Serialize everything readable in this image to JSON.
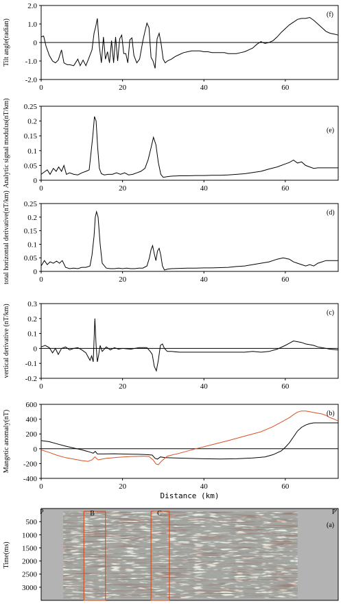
{
  "charts": [
    {
      "panel_label": "(f)",
      "type": "line",
      "ylabel": "Tilt angle(radian)",
      "xlabel": "",
      "xlim": [
        0,
        73
      ],
      "ylim": [
        -2.0,
        2.0
      ],
      "xticks": [
        0,
        20,
        40,
        60
      ],
      "yticks": [
        -2.0,
        -1.0,
        0,
        1.0,
        2.0
      ],
      "ytick_labels": [
        "-2.0",
        "-1.0",
        "0",
        "1.0",
        "2.0"
      ],
      "reference_line": 0,
      "series": [
        {
          "color": "#000000",
          "x": [
            0,
            0.6,
            1.2,
            2,
            2.8,
            3.5,
            4.2,
            5,
            5.6,
            6.4,
            7,
            8,
            9,
            9.6,
            10.3,
            11,
            11.8,
            12.5,
            13,
            13.4,
            13.8,
            14.3,
            14.8,
            15.3,
            15.8,
            16.3,
            16.8,
            17.3,
            17.8,
            18.3,
            18.8,
            19.3,
            19.8,
            20.3,
            20.8,
            21.3,
            21.8,
            22.3,
            22.8,
            23.5,
            24.2,
            25,
            25.5,
            26,
            26.5,
            27,
            27.5,
            28,
            28.5,
            29,
            29.5,
            30,
            30.5,
            31,
            31.5,
            32,
            33,
            34,
            35,
            36,
            37,
            38,
            39,
            40,
            41,
            42,
            43,
            44,
            45,
            46,
            47,
            48,
            49,
            50,
            51,
            52,
            53,
            54,
            55,
            56,
            57,
            58,
            59,
            60,
            61,
            62,
            63,
            64,
            65,
            66,
            67,
            68,
            69,
            70,
            71,
            72,
            73
          ],
          "y": [
            0.3,
            0.35,
            -0.2,
            -0.7,
            -1.0,
            -1.1,
            -0.95,
            -0.4,
            -1.1,
            -1.2,
            -1.2,
            -1.25,
            -0.9,
            -1.25,
            -0.95,
            -1.25,
            -0.8,
            -0.4,
            0.5,
            0.85,
            1.3,
            -0.2,
            -1.1,
            0.3,
            -0.9,
            -0.5,
            -1.1,
            0.1,
            -1.1,
            0.3,
            -1.0,
            0.2,
            0.4,
            -0.6,
            -0.6,
            -1.1,
            0.15,
            0.25,
            -0.7,
            -1.1,
            -0.9,
            0.1,
            0.6,
            1.05,
            0.8,
            -0.8,
            -1.0,
            -1.4,
            0.2,
            0.5,
            -0.1,
            -0.9,
            -1.1,
            -1.0,
            -0.95,
            -0.9,
            -0.75,
            -0.65,
            -0.55,
            -0.5,
            -0.45,
            -0.45,
            -0.45,
            -0.5,
            -0.5,
            -0.55,
            -0.55,
            -0.55,
            -0.55,
            -0.6,
            -0.6,
            -0.6,
            -0.55,
            -0.5,
            -0.4,
            -0.3,
            -0.1,
            0.05,
            -0.05,
            0.0,
            0.1,
            0.3,
            0.55,
            0.75,
            0.95,
            1.1,
            1.25,
            1.3,
            1.3,
            1.35,
            1.2,
            1.0,
            0.8,
            0.6,
            0.5,
            0.45,
            0.4
          ]
        }
      ]
    },
    {
      "panel_label": "(e)",
      "type": "line",
      "ylabel": "Analytic signal modulus(nT/km)",
      "xlabel": "",
      "xlim": [
        0,
        73
      ],
      "ylim": [
        0,
        0.25
      ],
      "xticks": [
        0,
        20,
        40,
        60
      ],
      "yticks": [
        0,
        0.05,
        0.1,
        0.15,
        0.2,
        0.25
      ],
      "ytick_labels": [
        "0",
        "0.05",
        "0.1",
        "0.15",
        "0.2",
        "0.25"
      ],
      "series": [
        {
          "color": "#000000",
          "x": [
            0,
            0.8,
            1.5,
            2.2,
            3,
            3.7,
            4.3,
            5,
            5.6,
            6.2,
            7,
            8,
            9,
            10,
            11,
            11.8,
            12.3,
            12.7,
            13.1,
            13.5,
            13.9,
            14.3,
            14.8,
            15.5,
            16.5,
            17.5,
            18.5,
            19.5,
            20.5,
            21.5,
            22.5,
            23.5,
            24.5,
            25.5,
            26.3,
            27,
            27.6,
            28.2,
            28.8,
            29.4,
            30,
            31,
            32,
            34,
            36,
            38,
            40,
            42,
            44,
            46,
            48,
            50,
            52,
            54,
            56,
            58,
            60,
            61,
            62,
            63,
            64,
            65,
            66,
            67,
            68,
            70,
            73
          ],
          "y": [
            0.02,
            0.028,
            0.035,
            0.02,
            0.04,
            0.03,
            0.045,
            0.03,
            0.05,
            0.02,
            0.025,
            0.02,
            0.018,
            0.025,
            0.03,
            0.035,
            0.1,
            0.15,
            0.215,
            0.2,
            0.11,
            0.04,
            0.022,
            0.018,
            0.02,
            0.02,
            0.025,
            0.02,
            0.025,
            0.018,
            0.02,
            0.025,
            0.03,
            0.04,
            0.07,
            0.11,
            0.145,
            0.12,
            0.06,
            0.02,
            0.01,
            0.012,
            0.014,
            0.015,
            0.015,
            0.016,
            0.016,
            0.017,
            0.017,
            0.018,
            0.02,
            0.022,
            0.026,
            0.03,
            0.038,
            0.045,
            0.055,
            0.06,
            0.068,
            0.058,
            0.062,
            0.05,
            0.045,
            0.04,
            0.042,
            0.042,
            0.042
          ]
        }
      ]
    },
    {
      "panel_label": "(d)",
      "type": "line",
      "ylabel": "total horizontal derivative(nT/km)",
      "xlabel": "",
      "xlim": [
        0,
        73
      ],
      "ylim": [
        0,
        0.25
      ],
      "xticks": [
        0,
        20,
        40,
        60
      ],
      "yticks": [
        0,
        0.05,
        0.1,
        0.15,
        0.2,
        0.25
      ],
      "ytick_labels": [
        "0",
        "0.05",
        "0.1",
        "0.15",
        "0.2",
        "0.25"
      ],
      "series": [
        {
          "color": "#000000",
          "x": [
            0,
            0.8,
            1.5,
            2.2,
            3,
            3.8,
            4.5,
            5.2,
            6,
            7,
            8,
            9,
            10,
            11,
            12,
            12.5,
            13,
            13.3,
            13.6,
            14,
            14.5,
            15,
            16,
            17,
            18,
            19,
            20,
            21,
            22,
            23,
            24,
            25,
            26,
            26.6,
            27,
            27.4,
            27.8,
            28.2,
            28.6,
            29,
            29.4,
            29.8,
            30.3,
            31,
            32,
            34,
            36,
            38,
            40,
            42,
            44,
            46,
            48,
            50,
            52,
            54,
            56,
            58,
            59.5,
            61,
            62,
            63,
            64,
            65,
            66,
            67,
            68,
            70,
            73
          ],
          "y": [
            0.02,
            0.04,
            0.025,
            0.035,
            0.03,
            0.038,
            0.03,
            0.04,
            0.015,
            0.01,
            0.012,
            0.01,
            0.015,
            0.015,
            0.02,
            0.06,
            0.13,
            0.2,
            0.22,
            0.2,
            0.1,
            0.03,
            0.012,
            0.01,
            0.01,
            0.012,
            0.01,
            0.012,
            0.01,
            0.01,
            0.012,
            0.012,
            0.02,
            0.05,
            0.08,
            0.095,
            0.065,
            0.04,
            0.075,
            0.085,
            0.06,
            0.02,
            0.005,
            0.008,
            0.01,
            0.011,
            0.012,
            0.012,
            0.013,
            0.013,
            0.014,
            0.015,
            0.018,
            0.02,
            0.025,
            0.03,
            0.035,
            0.045,
            0.05,
            0.045,
            0.035,
            0.03,
            0.025,
            0.02,
            0.025,
            0.02,
            0.03,
            0.04,
            0.04
          ]
        }
      ]
    },
    {
      "panel_label": "(c)",
      "type": "line",
      "ylabel": "vertical derivative (nT/km)",
      "xlabel": "",
      "xlim": [
        0,
        73
      ],
      "ylim": [
        -0.2,
        0.3
      ],
      "xticks": [
        0,
        20,
        40,
        60
      ],
      "yticks": [
        -0.2,
        -0.1,
        0,
        0.1,
        0.2,
        0.3
      ],
      "ytick_labels": [
        "-0.2",
        "-0.1",
        "0",
        "0.1",
        "0.2",
        "0.3"
      ],
      "reference_line": 0,
      "series": [
        {
          "color": "#000000",
          "x": [
            0,
            1,
            2,
            2.8,
            3.5,
            4.2,
            5,
            6,
            7,
            8,
            9,
            10,
            11,
            12,
            12.4,
            12.8,
            13.2,
            13.5,
            13.8,
            14.1,
            14.5,
            15,
            16,
            17,
            18,
            19,
            20,
            22,
            24,
            26,
            26.8,
            27.3,
            27.8,
            28.3,
            28.8,
            29.3,
            29.8,
            30.3,
            31,
            32,
            34,
            36,
            38,
            40,
            42,
            44,
            46,
            48,
            50,
            52,
            54,
            56,
            58,
            60,
            61,
            62,
            63,
            64,
            65,
            66,
            67,
            68,
            69,
            70,
            71,
            73
          ],
          "y": [
            0.01,
            0.02,
            0.005,
            -0.03,
            0.0,
            -0.04,
            0.0,
            0.01,
            -0.01,
            0.0,
            0.005,
            -0.01,
            -0.03,
            -0.08,
            -0.05,
            -0.09,
            0.2,
            0.02,
            -0.09,
            -0.05,
            0.02,
            -0.02,
            0.01,
            -0.01,
            0.005,
            -0.005,
            0.0,
            -0.005,
            0.005,
            0.005,
            -0.02,
            -0.04,
            -0.12,
            -0.15,
            -0.08,
            0.02,
            0.03,
            0.0,
            -0.02,
            -0.02,
            -0.025,
            -0.025,
            -0.025,
            -0.025,
            -0.025,
            -0.025,
            -0.025,
            -0.025,
            -0.025,
            -0.02,
            -0.025,
            -0.02,
            -0.005,
            0.02,
            0.035,
            0.05,
            0.045,
            0.04,
            0.03,
            0.025,
            0.02,
            0.01,
            0.005,
            0.0,
            -0.005,
            -0.01
          ]
        }
      ]
    },
    {
      "panel_label": "(b)",
      "type": "line",
      "ylabel": "Mangetic anomaly(nT)",
      "xlabel": "Distance (km)",
      "xlim": [
        0,
        73
      ],
      "ylim": [
        -400,
        600
      ],
      "xticks": [
        0,
        20,
        40,
        60
      ],
      "yticks": [
        -400,
        -200,
        0,
        200,
        400,
        600
      ],
      "ytick_labels": [
        "-400",
        "-200",
        "0",
        "200",
        "400",
        "600"
      ],
      "reference_line": 0,
      "series": [
        {
          "color": "#000000",
          "x": [
            0,
            2,
            4,
            6,
            8,
            10,
            12,
            12.8,
            13.3,
            13.8,
            15,
            18,
            21,
            24,
            26,
            27.3,
            28,
            28.6,
            29.3,
            30.5,
            33,
            36,
            40,
            44,
            48,
            52,
            55,
            57,
            59,
            60,
            61,
            62,
            63,
            64,
            65,
            66,
            67,
            68,
            70,
            73
          ],
          "y": [
            110,
            95,
            65,
            35,
            10,
            -15,
            -45,
            -60,
            -35,
            -70,
            -70,
            -68,
            -72,
            -75,
            -80,
            -85,
            -130,
            -140,
            -110,
            -120,
            -125,
            -130,
            -135,
            -138,
            -135,
            -125,
            -110,
            -80,
            -30,
            20,
            80,
            160,
            240,
            290,
            320,
            340,
            350,
            350,
            350,
            350
          ]
        },
        {
          "color": "#d9501e",
          "x": [
            0,
            2,
            4,
            6,
            8,
            10,
            11.5,
            12.5,
            13.2,
            14,
            16,
            19,
            22,
            25,
            26.5,
            27.5,
            28.2,
            28.8,
            29.5,
            31,
            34,
            38,
            42,
            46,
            50,
            54,
            57,
            59,
            61,
            62,
            63,
            64,
            65,
            66,
            67,
            68,
            69,
            70,
            71,
            72,
            73
          ],
          "y": [
            -15,
            -50,
            -90,
            -120,
            -140,
            -160,
            -170,
            -150,
            -110,
            -150,
            -130,
            -115,
            -105,
            -100,
            -105,
            -150,
            -205,
            -215,
            -170,
            -100,
            -60,
            0,
            55,
            110,
            170,
            230,
            300,
            360,
            420,
            460,
            495,
            510,
            510,
            500,
            490,
            480,
            470,
            450,
            420,
            400,
            375
          ]
        }
      ]
    }
  ],
  "seismic": {
    "panel_label": "(a)",
    "ylabel": "Time(ms)",
    "yticks": [
      500,
      1000,
      1500,
      2000,
      2500,
      3000
    ],
    "ylim": [
      0,
      3500
    ],
    "left_endpoint": "P",
    "right_endpoint": "P'",
    "zones": [
      {
        "label": "B",
        "x_from_km": 10.5,
        "x_to_km": 15.8,
        "color": "#d9501e"
      },
      {
        "label": "C",
        "x_from_km": 27.0,
        "x_to_km": 31.5,
        "color": "#d9501e"
      }
    ]
  }
}
